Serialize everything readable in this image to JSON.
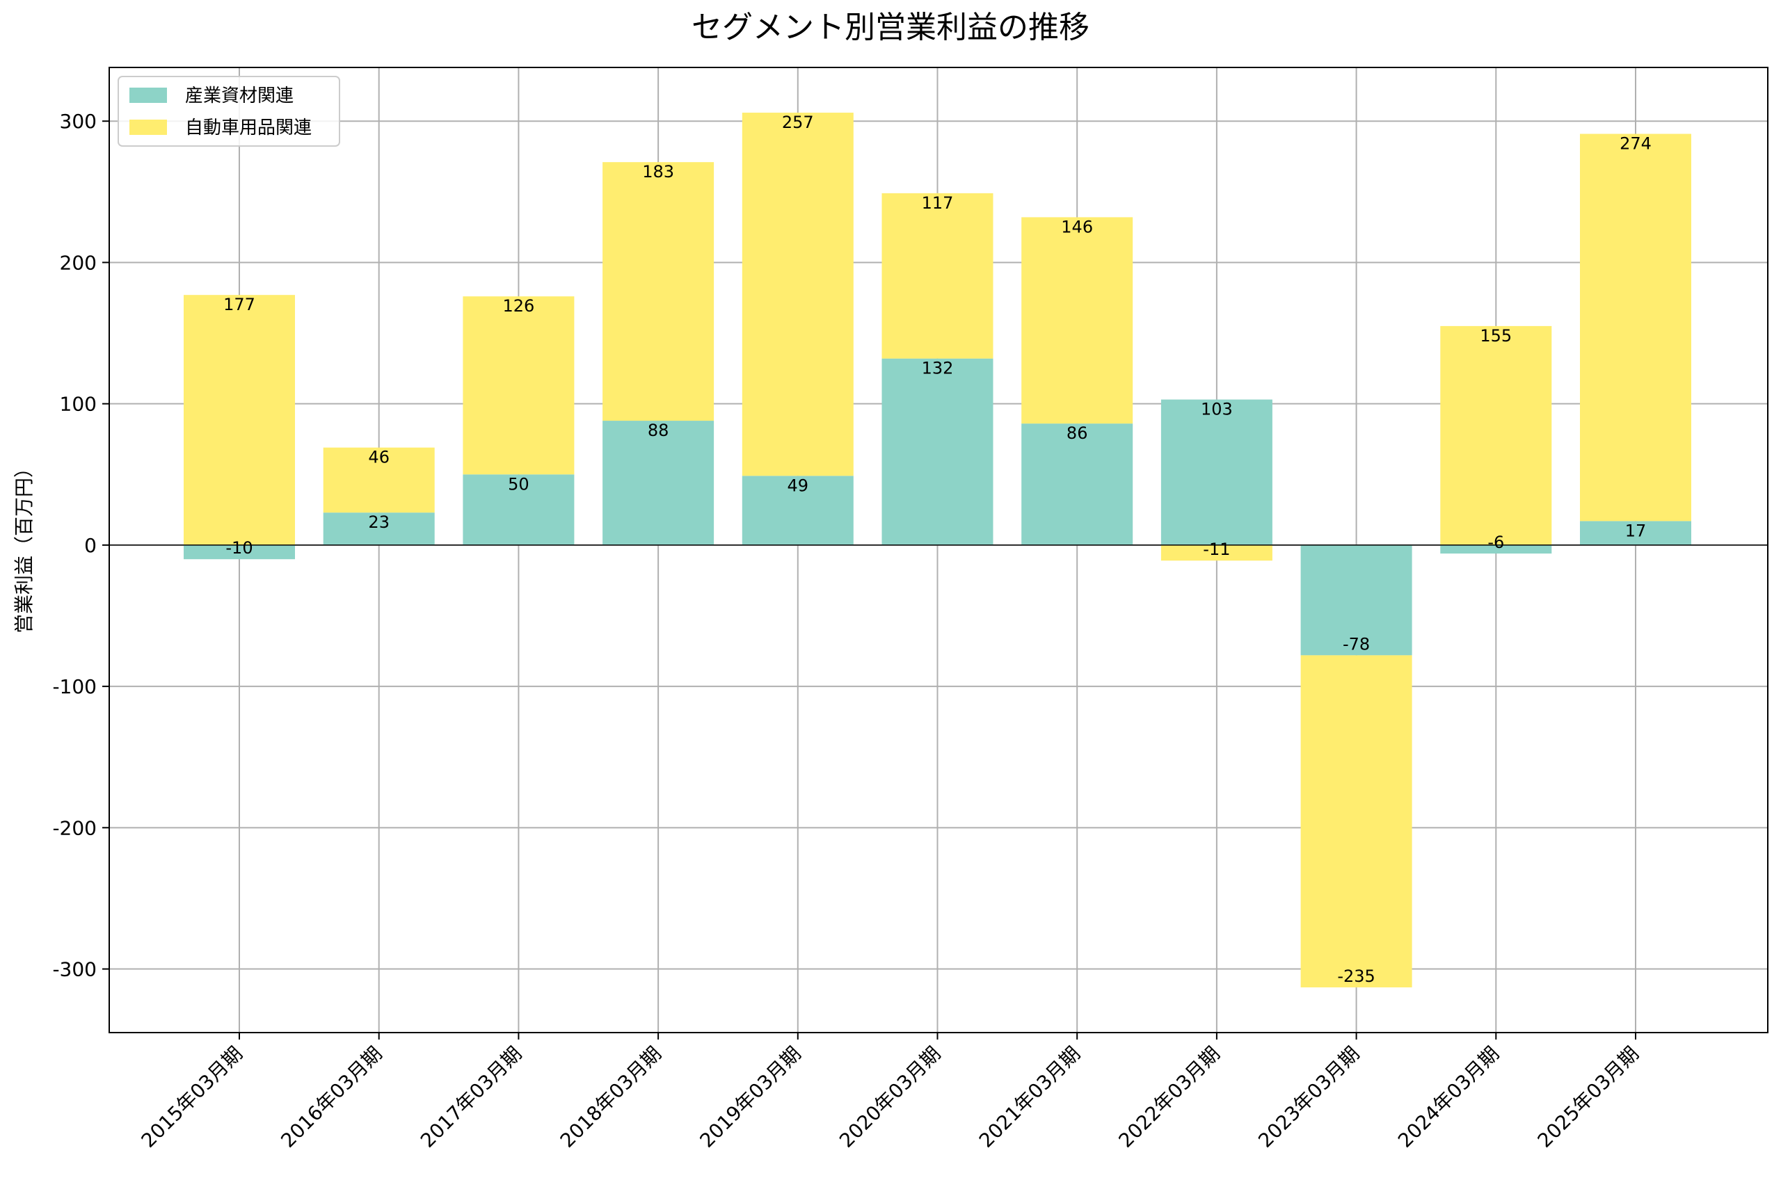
{
  "chart_data": {
    "type": "bar",
    "stacked": true,
    "title": "セグメント別営業利益の推移",
    "xlabel": "",
    "ylabel": "営業利益（百万円）",
    "categories": [
      "2015年03月期",
      "2016年03月期",
      "2017年03月期",
      "2018年03月期",
      "2019年03月期",
      "2020年03月期",
      "2021年03月期",
      "2022年03月期",
      "2023年03月期",
      "2024年03月期",
      "2025年03月期"
    ],
    "series": [
      {
        "name": "産業資材関連",
        "color": "#8dd3c7",
        "values": [
          -10,
          23,
          50,
          88,
          49,
          132,
          86,
          103,
          -78,
          -6,
          17
        ]
      },
      {
        "name": "自動車用品関連",
        "color": "#ffed6f",
        "values": [
          177,
          46,
          126,
          183,
          257,
          117,
          146,
          -11,
          -235,
          155,
          274
        ]
      }
    ],
    "ylim": [
      -345,
      338
    ],
    "yticks": [
      -300,
      -200,
      -100,
      0,
      100,
      200,
      300
    ],
    "grid": true,
    "legend_position": "top-left"
  }
}
